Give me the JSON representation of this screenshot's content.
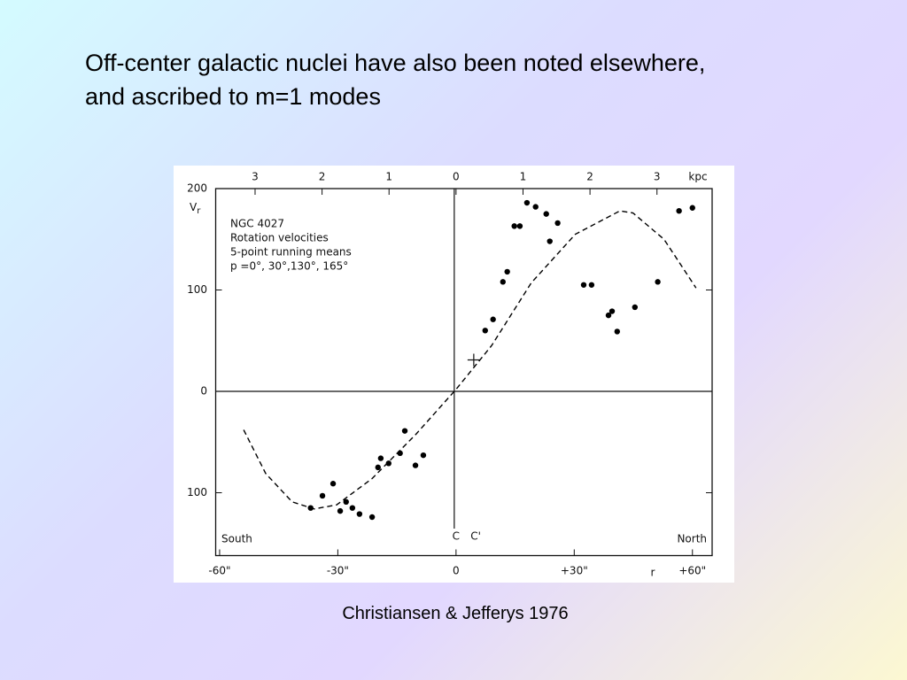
{
  "chart_data": {
    "type": "scatter",
    "title": [
      "Off-center galactic nuclei have also been noted elsewhere,",
      "and ascribed to m=1 modes"
    ],
    "caption": "Christiansen & Jefferys 1976",
    "annotation": [
      "NGC 4027",
      "Rotation velocities",
      "5-point running means",
      "p =0°, 30°,130°, 165°"
    ],
    "ylabel": "V",
    "ylabel_sub": "r",
    "xlabel": "r",
    "x2label": "kpc",
    "left_label": "South",
    "right_label": "North",
    "markers": [
      {
        "label": "C",
        "x": 0
      },
      {
        "label": "C'",
        "x": 5
      }
    ],
    "center_cross": [
      4.5,
      31
    ],
    "xlim": [
      -61,
      65
    ],
    "ylim": [
      -162,
      200
    ],
    "xticks": [
      {
        "value": -60,
        "label": "-60\""
      },
      {
        "value": -30,
        "label": "-30\""
      },
      0,
      {
        "value": 30,
        "label": "+30\""
      },
      {
        "value": 60,
        "label": "+60\""
      }
    ],
    "x2ticks": [
      {
        "value": -51,
        "label": "3"
      },
      {
        "value": -34,
        "label": "2"
      },
      {
        "value": -17,
        "label": "1"
      },
      {
        "value": 0,
        "label": "0"
      },
      {
        "value": 17,
        "label": "1"
      },
      {
        "value": 34,
        "label": "2"
      },
      {
        "value": 51,
        "label": "3"
      }
    ],
    "yticks": [
      {
        "value": -100,
        "label": "100"
      },
      0,
      100,
      200
    ],
    "series": [
      {
        "style": "points",
        "color": "#000000",
        "x": [
          -36.9,
          -33.9,
          -31.2,
          -29.4,
          -27.9,
          -26.3,
          -24.5,
          -21.3,
          -19.8,
          -19.1,
          -17.1,
          -14.2,
          -13.0,
          -10.3,
          -8.3,
          7.4,
          9.4,
          11.9,
          13.0,
          14.8,
          16.2,
          18.0,
          20.2,
          22.9,
          23.8,
          25.8,
          32.4,
          34.4,
          38.7,
          39.6,
          40.9,
          45.4,
          51.2,
          56.6,
          60.0
        ],
        "values": [
          -115,
          -103,
          -91,
          -118,
          -109,
          -115,
          -121,
          -124,
          -75,
          -66,
          -71,
          -61,
          -39,
          -73,
          -63,
          60,
          71,
          108,
          118,
          163,
          163,
          186,
          182,
          175,
          148,
          166,
          105,
          105,
          75,
          79,
          59,
          83,
          108,
          178,
          181
        ]
      },
      {
        "style": "dashed",
        "color": "#000000",
        "x": [
          -53.9,
          -48.3,
          -41.6,
          -36,
          -30.3,
          -21.3,
          -10.1,
          0,
          9,
          19.1,
          30.3,
          41.6,
          44.9,
          52.8,
          60.9
        ],
        "values": [
          -38,
          -81,
          -109,
          -116,
          -112,
          -86,
          -42,
          2,
          45,
          107,
          155,
          178,
          176,
          150,
          102
        ]
      }
    ]
  }
}
